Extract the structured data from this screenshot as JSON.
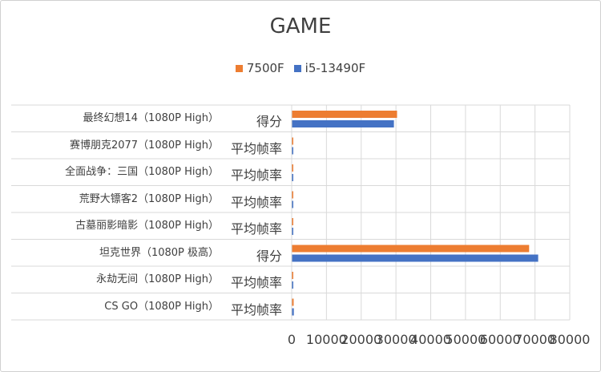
{
  "chart_data": {
    "type": "bar",
    "orientation": "horizontal",
    "title": "GAME",
    "legend_position": "top",
    "grid": true,
    "xlim": [
      0,
      80000
    ],
    "xticks": [
      "0",
      "10000",
      "20000",
      "30000",
      "40000",
      "50000",
      "60000",
      "70000",
      "80000"
    ],
    "categories": [
      {
        "group": "最终幻想14（1080P High）",
        "label": "得分"
      },
      {
        "group": "赛博朋克2077（1080P High）",
        "label": "平均帧率"
      },
      {
        "group": "全面战争：三国（1080P High）",
        "label": "平均帧率"
      },
      {
        "group": "荒野大镖客2（1080P High）",
        "label": "平均帧率"
      },
      {
        "group": "古墓丽影暗影（1080P High）",
        "label": "平均帧率"
      },
      {
        "group": "坦克世界（1080P 极高）",
        "label": "得分"
      },
      {
        "group": "永劫无间（1080P High）",
        "label": "平均帧率"
      },
      {
        "group": "CS GO（1080P High）",
        "label": "平均帧率"
      }
    ],
    "series": [
      {
        "name": "7500F",
        "color": "#ED7D31",
        "values": [
          30200,
          250,
          250,
          250,
          250,
          68200,
          250,
          450
        ]
      },
      {
        "name": "i5-13490F",
        "color": "#4472C4",
        "values": [
          29300,
          250,
          250,
          250,
          250,
          70800,
          250,
          500
        ]
      }
    ]
  }
}
